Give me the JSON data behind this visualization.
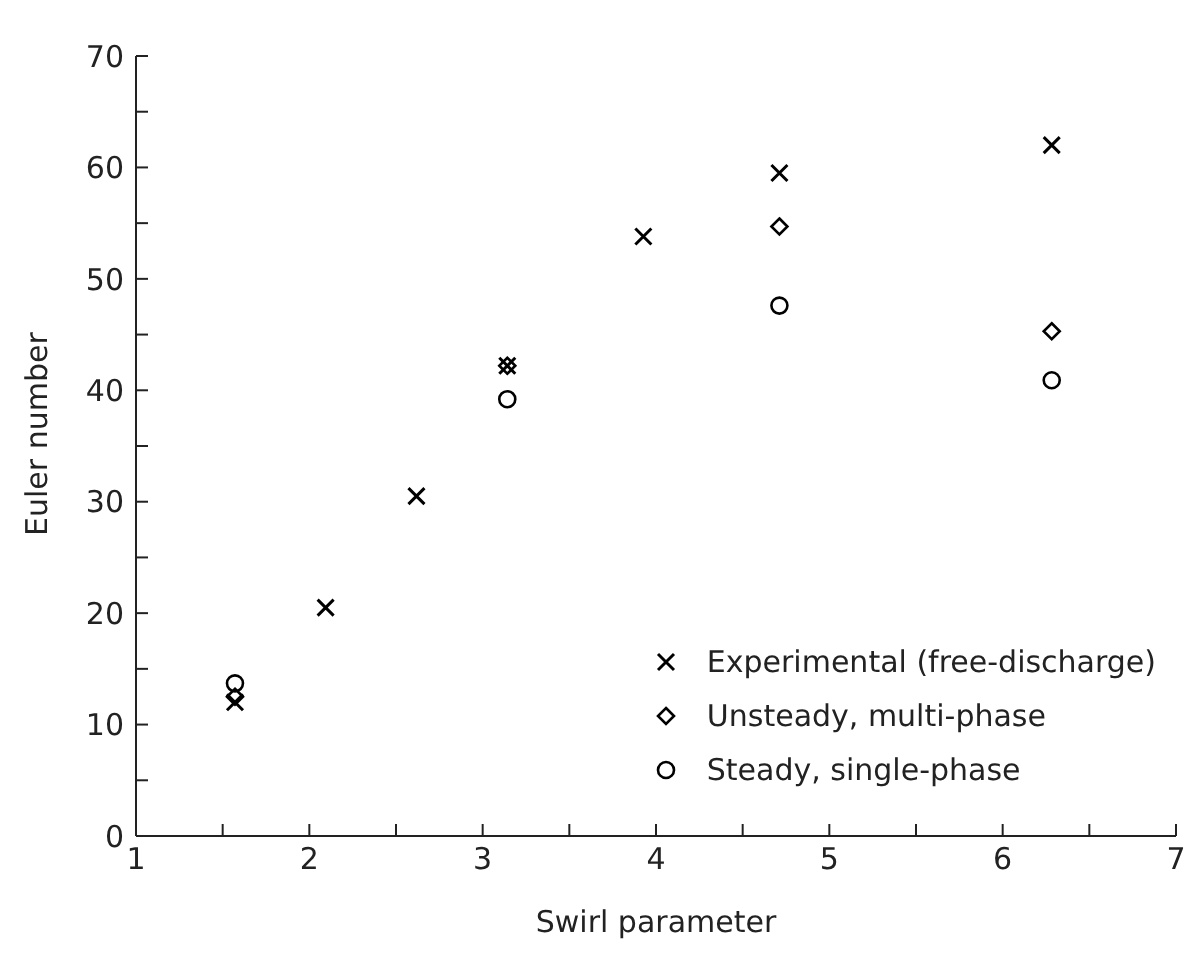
{
  "chart_data": {
    "type": "scatter",
    "xlabel": "Swirl parameter",
    "ylabel": "Euler number",
    "xlim": [
      1,
      7
    ],
    "ylim": [
      0,
      70
    ],
    "xticks": [
      1,
      {
        "value": 1.5,
        "label": null
      },
      2,
      {
        "value": 2.5,
        "label": null
      },
      3,
      {
        "value": 3.5,
        "label": null
      },
      4,
      {
        "value": 4.5,
        "label": null
      },
      5,
      {
        "value": 5.5,
        "label": null
      },
      6,
      {
        "value": 6.5,
        "label": null
      },
      7
    ],
    "yticks": [
      0,
      {
        "value": 5,
        "label": null
      },
      10,
      {
        "value": 15,
        "label": null
      },
      20,
      {
        "value": 25,
        "label": null
      },
      30,
      {
        "value": 35,
        "label": null
      },
      40,
      {
        "value": 45,
        "label": null
      },
      50,
      {
        "value": 55,
        "label": null
      },
      60,
      {
        "value": 65,
        "label": null
      },
      70
    ],
    "grid": false,
    "legend": "bottom right",
    "series": [
      {
        "name": "Experimental (free-discharge)",
        "color": "#000000",
        "marker": "cross",
        "x": [
          1.571,
          2.094,
          2.618,
          3.142,
          3.927,
          4.712,
          6.283
        ],
        "values": [
          12,
          20.5,
          30.5,
          42.2,
          53.8,
          59.5,
          62
        ]
      },
      {
        "name": "Unsteady, multi-phase",
        "color": "#000000",
        "marker": "diamond",
        "x": [
          1.571,
          3.142,
          4.712,
          6.283
        ],
        "values": [
          12.5,
          42.2,
          54.7,
          45.3
        ]
      },
      {
        "name": "Steady, single-phase",
        "color": "#000000",
        "marker": "circle",
        "x": [
          1.571,
          3.142,
          4.712,
          6.283
        ],
        "values": [
          13.7,
          39.2,
          47.6,
          40.9
        ]
      }
    ]
  }
}
